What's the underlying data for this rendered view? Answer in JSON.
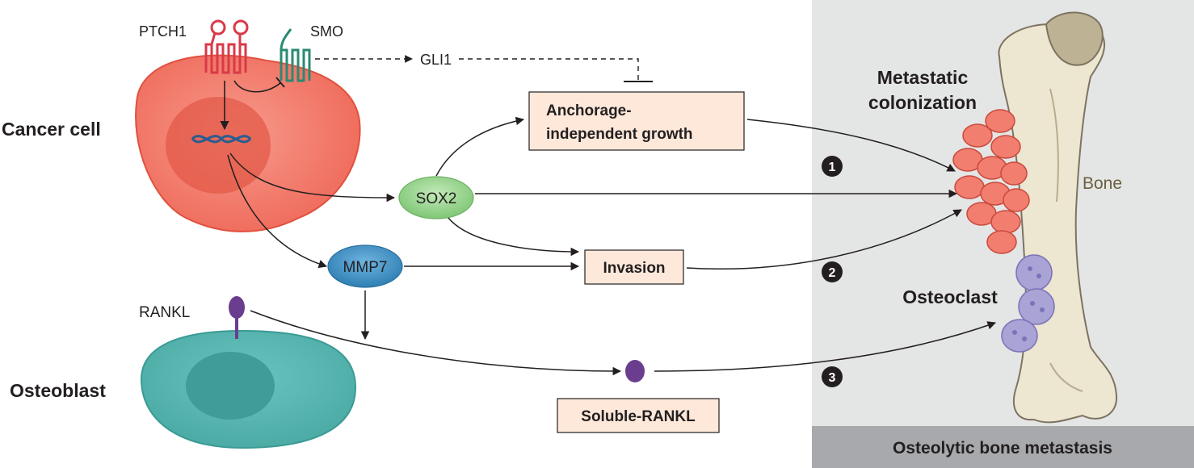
{
  "labels": {
    "ptch1": "PTCH1",
    "smo": "SMO",
    "gli1": "GLI1",
    "cancer_cell": "Cancer cell",
    "osteoblast": "Osteoblast",
    "rankl": "RANKL",
    "sox2": "SOX2",
    "mmp7": "MMP7",
    "anchorage_line1": "Anchorage-",
    "anchorage_line2": "independent growth",
    "invasion": "Invasion",
    "soluble_rankl": "Soluble-RANKL",
    "metastatic_line1": "Metastatic",
    "metastatic_line2": "colonization",
    "bone": "Bone",
    "osteoclast": "Osteoclast",
    "panel_title": "Osteolytic bone metastasis",
    "step1": "1",
    "step2": "2",
    "step3": "3"
  },
  "colors": {
    "cancer_cell": "#ef6a5a",
    "cancer_nucleus": "#e04e40",
    "osteoblast": "#4fb3ad",
    "osteoblast_nucleus": "#3a9a94",
    "sox2": "#8fd28a",
    "mmp7": "#3d8fc2",
    "rankl": "#6a3d8f",
    "box_fill": "#fde8da",
    "panel_bg": "#e4e5e5",
    "panel_footer": "#a7a9ac",
    "bone_fill": "#ede6d0",
    "osteoclast": "#a9a3d6"
  }
}
